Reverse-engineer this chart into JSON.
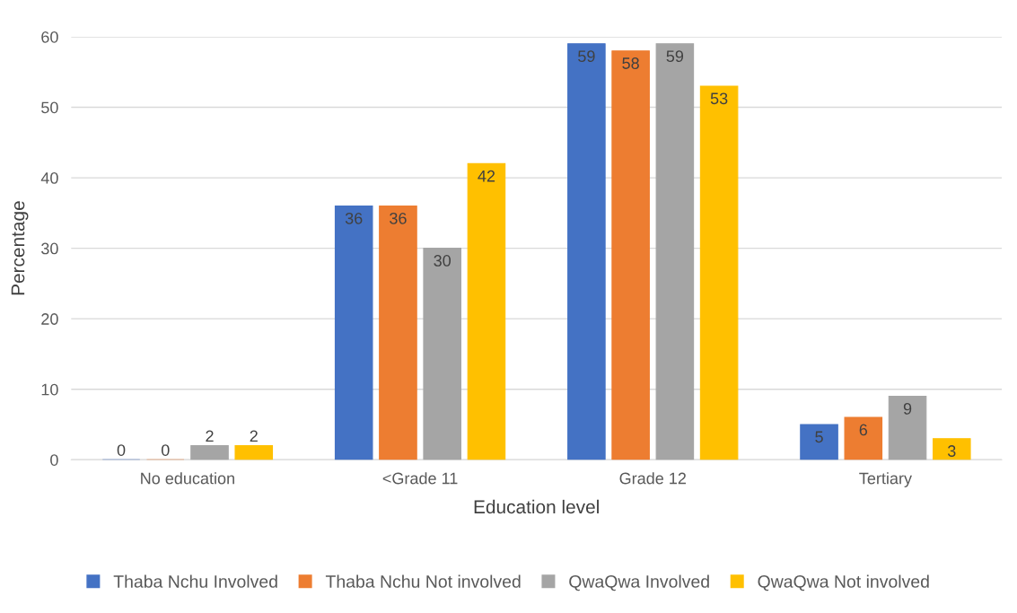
{
  "chart_data": {
    "type": "bar",
    "xlabel": "Education level",
    "ylabel": "Percentage",
    "categories": [
      "No education",
      "<Grade 11",
      "Grade 12",
      "Tertiary"
    ],
    "series": [
      {
        "name": "Thaba Nchu Involved",
        "color": "#4472c4",
        "values": [
          0,
          36,
          59,
          5
        ]
      },
      {
        "name": "Thaba Nchu Not involved",
        "color": "#ed7d31",
        "values": [
          0,
          36,
          58,
          6
        ]
      },
      {
        "name": "QwaQwa Involved",
        "color": "#a5a5a5",
        "values": [
          2,
          30,
          59,
          9
        ]
      },
      {
        "name": "QwaQwa Not involved",
        "color": "#ffc000",
        "values": [
          2,
          42,
          53,
          3
        ]
      }
    ],
    "ylim": [
      0,
      60
    ],
    "yticks": [
      0,
      10,
      20,
      30,
      40,
      50,
      60
    ],
    "grid": "y",
    "legend": "bottom",
    "data_labels": true
  }
}
